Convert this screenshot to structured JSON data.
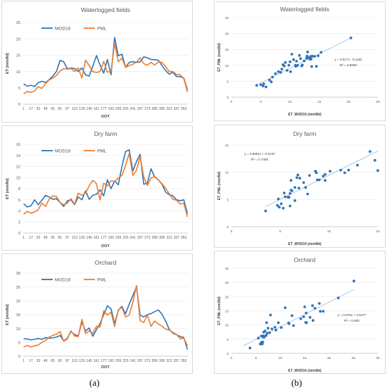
{
  "captions": {
    "a": "(a)",
    "b": "(b)"
  },
  "chart_data": [
    {
      "id": "ts0",
      "type": "line",
      "title": "Waterlogged fields",
      "xlabel": "DOY",
      "ylabel": "ET    (mm/8d)",
      "ylim": [
        0,
        25
      ],
      "yticks": [
        0,
        5,
        10,
        15,
        20,
        25
      ],
      "x": [
        1,
        9,
        17,
        25,
        33,
        41,
        49,
        57,
        65,
        73,
        81,
        89,
        97,
        105,
        113,
        121,
        129,
        137,
        145,
        153,
        161,
        169,
        177,
        185,
        193,
        201,
        209,
        217,
        225,
        233,
        241,
        249,
        257,
        265,
        273,
        281,
        289,
        297,
        305,
        313,
        321,
        329,
        337,
        345,
        353,
        361
      ],
      "xticks": [
        1,
        17,
        33,
        49,
        65,
        81,
        97,
        113,
        129,
        145,
        161,
        177,
        193,
        209,
        225,
        241,
        257,
        273,
        289,
        305,
        321,
        337,
        353
      ],
      "legend": "top-left",
      "series": [
        {
          "name": "MOD16",
          "color": "#2e75b6",
          "values": [
            6.2,
            5.5,
            5.8,
            5.4,
            6.6,
            7.0,
            6.6,
            7.5,
            8.6,
            10.0,
            13.4,
            13.0,
            10.8,
            11.1,
            10.9,
            10.0,
            11.1,
            9.0,
            8.6,
            11.6,
            14.9,
            12.0,
            9.5,
            13.7,
            9.0,
            20.4,
            14.8,
            15.3,
            11.3,
            12.8,
            13.0,
            12.8,
            12.9,
            14.5,
            14.2,
            13.7,
            13.6,
            13.5,
            11.8,
            10.3,
            9.2,
            9.8,
            8.5,
            8.4,
            8.0,
            4.3
          ]
        },
        {
          "name": "PML",
          "color": "#ed7d31",
          "values": [
            3.2,
            3.9,
            3.6,
            4.0,
            5.4,
            4.8,
            6.3,
            7.4,
            8.0,
            8.8,
            10.2,
            10.9,
            10.7,
            10.9,
            10.0,
            11.1,
            8.0,
            13.5,
            11.8,
            10.0,
            9.7,
            10.0,
            13.1,
            9.8,
            10.1,
            18.6,
            13.0,
            14.1,
            11.3,
            11.8,
            12.2,
            12.9,
            14.2,
            12.4,
            11.9,
            12.8,
            12.0,
            12.9,
            12.8,
            11.5,
            10.0,
            10.0,
            9.1,
            9.0,
            7.8,
            3.7
          ]
        }
      ]
    },
    {
      "id": "ts1",
      "type": "line",
      "title": "Dry farm",
      "xlabel": "DOY",
      "ylabel": "ET    (mm/8d)",
      "ylim": [
        0,
        16
      ],
      "yticks": [
        0,
        2,
        4,
        6,
        8,
        10,
        12,
        14,
        16
      ],
      "x": [
        1,
        9,
        17,
        25,
        33,
        41,
        49,
        57,
        65,
        73,
        81,
        89,
        97,
        105,
        113,
        121,
        129,
        137,
        145,
        153,
        161,
        169,
        177,
        185,
        193,
        201,
        209,
        217,
        225,
        233,
        241,
        249,
        257,
        265,
        273,
        281,
        289,
        297,
        305,
        313,
        321,
        329,
        337,
        345,
        353,
        361
      ],
      "xticks": [
        1,
        17,
        33,
        49,
        65,
        81,
        97,
        113,
        129,
        145,
        161,
        177,
        193,
        209,
        225,
        241,
        257,
        273,
        289,
        305,
        321,
        337,
        353
      ],
      "legend": "top-left",
      "series": [
        {
          "name": "MOD16",
          "color": "#2e75b6",
          "values": [
            5.3,
            4.7,
            4.9,
            6.0,
            5.1,
            5.9,
            6.8,
            6.5,
            6.1,
            6.2,
            5.5,
            4.8,
            5.8,
            6.0,
            5.1,
            6.5,
            6.0,
            7.6,
            6.1,
            6.8,
            7.0,
            7.8,
            6.7,
            9.6,
            8.0,
            9.4,
            8.7,
            12.0,
            14.7,
            15.0,
            11.2,
            12.9,
            14.2,
            8.8,
            9.0,
            11.6,
            10.1,
            9.6,
            8.8,
            7.4,
            6.9,
            6.7,
            6.0,
            5.8,
            6.0,
            3.5
          ]
        },
        {
          "name": "PML",
          "color": "#ed7d31",
          "values": [
            3.4,
            3.9,
            3.6,
            3.8,
            4.2,
            5.4,
            4.8,
            6.1,
            6.7,
            6.6,
            5.5,
            5.1,
            5.4,
            6.2,
            5.2,
            7.2,
            6.8,
            7.2,
            8.5,
            9.5,
            8.9,
            6.0,
            9.0,
            8.5,
            9.4,
            9.3,
            9.9,
            10.4,
            12.2,
            14.3,
            10.4,
            11.3,
            13.8,
            10.1,
            8.6,
            9.9,
            10.2,
            9.6,
            8.9,
            8.1,
            7.1,
            6.1,
            5.9,
            5.2,
            5.4,
            2.9
          ]
        }
      ]
    },
    {
      "id": "ts2",
      "type": "line",
      "title": "Orchard",
      "xlabel": "DOY",
      "ylabel": "ET    (mm/8d)",
      "ylim": [
        0,
        30
      ],
      "yticks": [
        0,
        5,
        10,
        15,
        20,
        25,
        30
      ],
      "x": [
        1,
        9,
        17,
        25,
        33,
        41,
        49,
        57,
        65,
        73,
        81,
        89,
        97,
        105,
        113,
        121,
        129,
        137,
        145,
        153,
        161,
        169,
        177,
        185,
        193,
        201,
        209,
        217,
        225,
        233,
        241,
        249,
        257,
        265,
        273,
        281,
        289,
        297,
        305,
        313,
        321,
        329,
        337,
        345,
        353,
        361
      ],
      "xticks": [
        1,
        17,
        33,
        49,
        65,
        81,
        97,
        113,
        129,
        145,
        161,
        177,
        193,
        209,
        225,
        241,
        257,
        273,
        289,
        305,
        321,
        337,
        353
      ],
      "legend": "top-left",
      "series": [
        {
          "name": "MOD16",
          "color": "#2e75b6",
          "values": [
            6.3,
            6.2,
            5.9,
            6.1,
            6.4,
            6.1,
            6.7,
            6.5,
            6.6,
            6.9,
            7.5,
            5.5,
            6.5,
            8.9,
            7.8,
            7.3,
            12.4,
            9.1,
            10.2,
            7.2,
            9.6,
            11.8,
            15.0,
            18.2,
            17.1,
            11.7,
            16.6,
            18.0,
            15.3,
            18.8,
            21.9,
            25.1,
            14.8,
            14.2,
            15.0,
            15.4,
            16.1,
            16.7,
            15.2,
            12.7,
            9.7,
            8.3,
            7.8,
            7.1,
            6.8,
            2.4
          ]
        },
        {
          "name": "PML",
          "color": "#ed7d31",
          "values": [
            3.3,
            3.9,
            3.3,
            3.8,
            4.0,
            5.0,
            5.7,
            6.9,
            7.5,
            7.9,
            8.9,
            5.4,
            6.2,
            9.2,
            7.3,
            7.1,
            13.3,
            8.2,
            9.1,
            8.3,
            10.8,
            10.5,
            16.4,
            14.8,
            15.9,
            10.7,
            16.8,
            17.6,
            14.2,
            14.8,
            19.5,
            25.5,
            12.9,
            12.2,
            14.8,
            10.8,
            12.7,
            11.6,
            10.9,
            9.8,
            9.4,
            8.6,
            7.9,
            6.3,
            6.5,
            3.8
          ]
        }
      ]
    },
    {
      "id": "sc0",
      "type": "scatter",
      "title": "Waterlogged fields",
      "xlabel": "ET_MOD16  (mm/8d)",
      "ylabel": "ET_PML  (mm/8d)",
      "xlim": [
        0,
        25
      ],
      "xticks": [
        0,
        5,
        10,
        15,
        20,
        25
      ],
      "ylim": [
        0,
        25
      ],
      "yticks": [
        0,
        5,
        10,
        15,
        20,
        25
      ],
      "equation": "y = 0.917x - 0.1183",
      "r2": "R² = 0.8082",
      "trend": {
        "slope": 0.917,
        "intercept": -0.1183,
        "x_range": [
          4.2,
          20.4
        ]
      },
      "color": "#2e75b6",
      "points": [
        [
          4.3,
          3.7
        ],
        [
          5.0,
          3.9
        ],
        [
          5.4,
          3.5
        ],
        [
          5.5,
          4.2
        ],
        [
          5.9,
          3.2
        ],
        [
          6.5,
          5.4
        ],
        [
          6.8,
          4.8
        ],
        [
          7.0,
          6.3
        ],
        [
          7.5,
          7.4
        ],
        [
          8.0,
          8.0
        ],
        [
          8.4,
          7.8
        ],
        [
          8.6,
          8.8
        ],
        [
          8.8,
          10.2
        ],
        [
          9.0,
          9.8
        ],
        [
          9.2,
          10.9
        ],
        [
          9.5,
          8.4
        ],
        [
          9.8,
          10.0
        ],
        [
          10.0,
          11.1
        ],
        [
          10.1,
          8.0
        ],
        [
          10.3,
          13.5
        ],
        [
          10.6,
          11.8
        ],
        [
          10.9,
          10.0
        ],
        [
          11.0,
          9.7
        ],
        [
          11.1,
          11.3
        ],
        [
          11.3,
          10.0
        ],
        [
          11.6,
          13.1
        ],
        [
          11.8,
          12.1
        ],
        [
          12.0,
          9.8
        ],
        [
          12.1,
          10.1
        ],
        [
          12.4,
          11.4
        ],
        [
          12.8,
          12.2
        ],
        [
          12.9,
          12.9
        ],
        [
          13.0,
          14.2
        ],
        [
          13.2,
          12.4
        ],
        [
          13.4,
          11.9
        ],
        [
          13.5,
          12.8
        ],
        [
          13.6,
          12.0
        ],
        [
          13.7,
          9.6
        ],
        [
          13.8,
          12.9
        ],
        [
          14.2,
          12.8
        ],
        [
          14.5,
          9.7
        ],
        [
          14.8,
          13.0
        ],
        [
          15.3,
          14.1
        ],
        [
          20.4,
          18.6
        ]
      ]
    },
    {
      "id": "sc1",
      "type": "scatter",
      "title": "Dry farm",
      "xlabel": "ET_MOD16  (mm/8d)",
      "ylabel": "ET_PML  (mm/8d)",
      "xlim": [
        0,
        15
      ],
      "xticks": [
        0,
        5,
        10,
        15
      ],
      "ylim": [
        0,
        15
      ],
      "yticks": [
        0,
        5,
        10,
        15
      ],
      "equation": "y = 0.8851x + 0.6134",
      "r2": "R² = 0.7466",
      "trend": {
        "slope": 0.8851,
        "intercept": 0.6134,
        "x_range": [
          3.5,
          15.0
        ]
      },
      "color": "#2e75b6",
      "points": [
        [
          3.5,
          2.9
        ],
        [
          4.7,
          3.9
        ],
        [
          4.8,
          5.1
        ],
        [
          4.9,
          3.6
        ],
        [
          5.1,
          4.2
        ],
        [
          5.3,
          3.4
        ],
        [
          5.4,
          6.2
        ],
        [
          5.5,
          5.5
        ],
        [
          5.8,
          5.4
        ],
        [
          5.9,
          5.4
        ],
        [
          6.0,
          3.8
        ],
        [
          6.0,
          6.1
        ],
        [
          6.1,
          6.7
        ],
        [
          6.1,
          8.5
        ],
        [
          6.2,
          6.6
        ],
        [
          6.5,
          7.2
        ],
        [
          6.5,
          4.8
        ],
        [
          6.7,
          9.0
        ],
        [
          6.8,
          9.5
        ],
        [
          6.9,
          7.1
        ],
        [
          7.0,
          8.9
        ],
        [
          7.4,
          8.1
        ],
        [
          7.6,
          7.2
        ],
        [
          7.8,
          6.0
        ],
        [
          8.0,
          9.4
        ],
        [
          8.6,
          10.2
        ],
        [
          8.7,
          9.9
        ],
        [
          8.8,
          8.6
        ],
        [
          9.0,
          8.6
        ],
        [
          9.4,
          9.3
        ],
        [
          9.6,
          8.5
        ],
        [
          9.6,
          9.6
        ],
        [
          10.1,
          10.2
        ],
        [
          11.2,
          10.4
        ],
        [
          11.6,
          9.9
        ],
        [
          12.0,
          10.4
        ],
        [
          12.9,
          11.3
        ],
        [
          14.2,
          13.8
        ],
        [
          14.7,
          12.2
        ],
        [
          15.0,
          10.3
        ]
      ]
    },
    {
      "id": "sc2",
      "type": "scatter",
      "title": "Orchard",
      "xlabel": "ET_MOD16  (mm/8d)",
      "ylabel": "ET_PML  (mm/8d)",
      "xlim": [
        0,
        30
      ],
      "xticks": [
        0,
        5,
        10,
        15,
        20,
        25,
        30
      ],
      "ylim": [
        0,
        30
      ],
      "yticks": [
        0,
        5,
        10,
        15,
        20,
        25,
        30
      ],
      "equation": "y = 0.876x + 0.5477",
      "r2": "R² = 0.805",
      "trend": {
        "slope": 0.876,
        "intercept": 0.5477,
        "x_range": [
          2.4,
          25.1
        ]
      },
      "color": "#2e75b6",
      "points": [
        [
          3.8,
          1.9
        ],
        [
          5.5,
          5.4
        ],
        [
          5.9,
          3.3
        ],
        [
          6.1,
          3.8
        ],
        [
          6.1,
          6.1
        ],
        [
          6.2,
          3.9
        ],
        [
          6.3,
          3.3
        ],
        [
          6.4,
          4.0
        ],
        [
          6.5,
          5.7
        ],
        [
          6.5,
          6.2
        ],
        [
          6.6,
          7.5
        ],
        [
          6.7,
          5.7
        ],
        [
          6.9,
          7.9
        ],
        [
          7.1,
          6.3
        ],
        [
          7.3,
          7.1
        ],
        [
          7.5,
          8.9
        ],
        [
          7.8,
          7.3
        ],
        [
          8.3,
          8.6
        ],
        [
          8.9,
          9.2
        ],
        [
          9.1,
          8.2
        ],
        [
          9.6,
          10.8
        ],
        [
          10.2,
          9.1
        ],
        [
          11.7,
          10.7
        ],
        [
          11.8,
          10.5
        ],
        [
          12.4,
          13.3
        ],
        [
          12.7,
          9.8
        ],
        [
          14.2,
          12.2
        ],
        [
          14.8,
          12.9
        ],
        [
          15.0,
          16.4
        ],
        [
          15.2,
          10.9
        ],
        [
          15.3,
          14.2
        ],
        [
          15.4,
          10.8
        ],
        [
          16.1,
          12.7
        ],
        [
          16.6,
          16.8
        ],
        [
          16.7,
          11.6
        ],
        [
          17.1,
          15.9
        ],
        [
          18.0,
          17.6
        ],
        [
          18.2,
          14.8
        ],
        [
          18.8,
          14.8
        ],
        [
          21.9,
          19.5
        ],
        [
          25.1,
          25.5
        ],
        [
          7.2,
          10.8
        ],
        [
          8.0,
          13.5
        ],
        [
          11.0,
          16.1
        ]
      ]
    }
  ]
}
